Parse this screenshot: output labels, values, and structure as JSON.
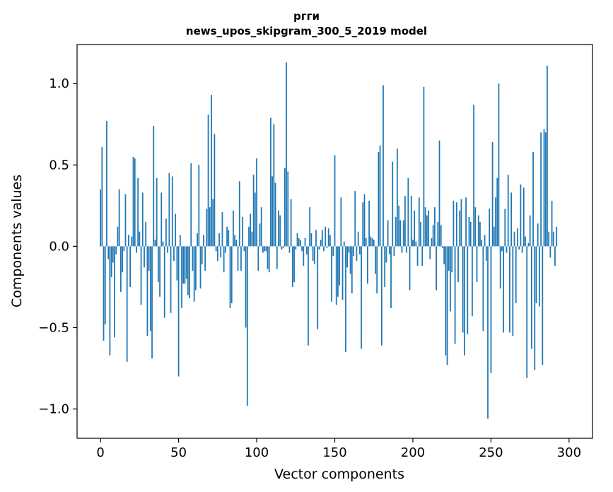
{
  "chart_data": {
    "type": "bar",
    "title": "ргги",
    "subtitle": "news_upos_skipgram_300_5_2019 model",
    "xlabel": "Vector components",
    "ylabel": "Components values",
    "xlim": [
      -15,
      315
    ],
    "ylim": [
      -1.18,
      1.24
    ],
    "xticks": [
      0,
      50,
      100,
      150,
      200,
      250,
      300
    ],
    "yticks": [
      -1.0,
      -0.5,
      0.0,
      0.5,
      1.0
    ],
    "ytick_labels": [
      "−1.0",
      "−0.5",
      "0.0",
      "0.5",
      "1.0"
    ],
    "bar_color": "#1f77b4",
    "grid": false,
    "values": [
      0.35,
      0.61,
      -0.58,
      -0.48,
      0.77,
      -0.08,
      -0.67,
      -0.19,
      -0.1,
      -0.56,
      -0.05,
      0.12,
      0.35,
      -0.28,
      -0.16,
      -0.03,
      0.32,
      -0.71,
      0.07,
      -0.25,
      0.06,
      0.55,
      0.54,
      -0.04,
      0.42,
      0.09,
      -0.36,
      0.33,
      -0.13,
      0.15,
      -0.55,
      -0.15,
      -0.52,
      -0.69,
      0.74,
      0.04,
      0.42,
      -0.22,
      -0.31,
      0.33,
      0.03,
      -0.44,
      0.17,
      -0.04,
      0.45,
      -0.41,
      0.43,
      -0.09,
      0.2,
      -0.21,
      -0.8,
      0.07,
      -0.38,
      -0.23,
      -0.23,
      -0.2,
      -0.3,
      -0.32,
      0.51,
      -0.15,
      -0.34,
      -0.27,
      0.08,
      0.5,
      -0.26,
      -0.11,
      0.07,
      -0.15,
      0.23,
      0.81,
      0.24,
      0.93,
      0.29,
      0.69,
      -0.03,
      -0.09,
      0.08,
      -0.07,
      0.21,
      -0.16,
      -0.04,
      0.12,
      0.1,
      -0.38,
      -0.35,
      0.22,
      0.07,
      0.04,
      -0.15,
      0.4,
      -0.15,
      0.18,
      -0.03,
      -0.5,
      -0.98,
      0.12,
      0.2,
      0.09,
      0.44,
      0.33,
      0.54,
      -0.15,
      0.14,
      0.24,
      -0.04,
      -0.03,
      -0.03,
      -0.14,
      -0.16,
      0.79,
      0.43,
      0.75,
      0.39,
      -0.14,
      0.22,
      0.19,
      -0.02,
      -0.01,
      0.48,
      1.13,
      0.46,
      -0.04,
      0.29,
      -0.25,
      -0.22,
      -0.02,
      0.08,
      0.05,
      0.04,
      -0.03,
      -0.12,
      0.05,
      -0.05,
      -0.61,
      0.24,
      0.08,
      -0.09,
      -0.11,
      0.1,
      -0.51,
      -0.02,
      0.04,
      0.1,
      -0.03,
      0.12,
      -0.01,
      0.11,
      0.07,
      -0.34,
      -0.06,
      0.56,
      -0.36,
      -0.31,
      -0.24,
      0.3,
      -0.33,
      0.03,
      -0.65,
      -0.13,
      -0.04,
      -0.17,
      -0.29,
      -0.06,
      0.34,
      -0.09,
      0.09,
      -0.05,
      -0.63,
      0.27,
      0.32,
      0.05,
      -0.23,
      0.28,
      0.06,
      0.05,
      0.04,
      -0.17,
      -0.29,
      0.58,
      0.62,
      -0.61,
      0.99,
      -0.25,
      -0.1,
      0.16,
      -0.05,
      -0.38,
      0.52,
      -0.06,
      0.18,
      0.6,
      0.25,
      0.16,
      -0.04,
      0.16,
      0.31,
      -0.04,
      0.42,
      -0.27,
      0.31,
      0.04,
      0.22,
      0.03,
      -0.12,
      0.3,
      0.15,
      -0.12,
      0.98,
      0.24,
      0.19,
      0.22,
      -0.08,
      0.05,
      0.13,
      0.24,
      -0.27,
      0.15,
      0.65,
      0.13,
      -0.01,
      -0.11,
      -0.67,
      -0.73,
      -0.15,
      -0.4,
      -0.16,
      0.28,
      -0.6,
      0.27,
      -0.22,
      0.22,
      0.29,
      -0.53,
      -0.67,
      0.3,
      -0.54,
      0.18,
      0.15,
      -0.43,
      0.87,
      0.24,
      -0.22,
      0.19,
      0.15,
      0.04,
      -0.52,
      0.07,
      -0.09,
      -1.06,
      0.23,
      -0.78,
      0.64,
      0.12,
      0.3,
      0.42,
      1.0,
      -0.26,
      -0.03,
      -0.53,
      0.23,
      -0.04,
      0.44,
      -0.53,
      0.33,
      -0.55,
      0.09,
      -0.35,
      0.11,
      -0.02,
      0.38,
      -0.04,
      0.36,
      0.06,
      -0.81,
      0.02,
      0.19,
      -0.63,
      0.58,
      -0.76,
      -0.35,
      0.14,
      -0.37,
      0.7,
      -0.73,
      0.72,
      0.7,
      1.11,
      0.09,
      -0.07,
      0.28,
      0.09,
      -0.12,
      0.12
    ]
  }
}
